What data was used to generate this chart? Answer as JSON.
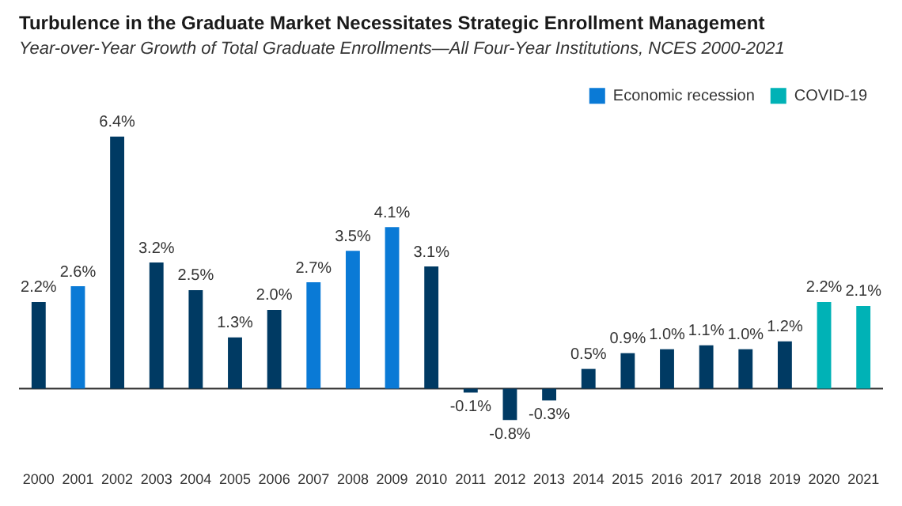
{
  "chart_data": {
    "type": "bar",
    "title": "Turbulence in the Graduate Market Necessitates Strategic Enrollment Management",
    "subtitle": "Year-over-Year Growth of Total Graduate Enrollments—All Four-Year Institutions, NCES 2000-2021",
    "categories": [
      "2000",
      "2001",
      "2002",
      "2003",
      "2004",
      "2005",
      "2006",
      "2007",
      "2008",
      "2009",
      "2010",
      "2011",
      "2012",
      "2013",
      "2014",
      "2015",
      "2016",
      "2017",
      "2018",
      "2019",
      "2020",
      "2021"
    ],
    "stacked": true,
    "legend": "top right",
    "series": [
      {
        "color": "#003a63",
        "values": [
          2.2,
          null,
          6.4,
          3.2,
          2.5,
          1.3,
          2.0,
          null,
          null,
          null,
          3.1,
          -0.1,
          -0.8,
          -0.3,
          0.5,
          0.9,
          1.0,
          1.1,
          1.0,
          1.2,
          null,
          null
        ],
        "value_labels": [
          "2.2%",
          null,
          "6.4%",
          "3.2%",
          "2.5%",
          "1.3%",
          "2.0%",
          null,
          null,
          null,
          "3.1%",
          "-0.1%",
          "-0.8%",
          "-0.3%",
          "0.5%",
          "0.9%",
          "1.0%",
          "1.1%",
          "1.0%",
          "1.2%",
          null,
          null
        ]
      },
      {
        "name": "Economic recession",
        "color": "#0a7ad6",
        "values": [
          null,
          2.6,
          null,
          null,
          null,
          null,
          null,
          2.7,
          3.5,
          4.1,
          null,
          null,
          null,
          null,
          null,
          null,
          null,
          null,
          null,
          null,
          null,
          null
        ],
        "value_labels": [
          null,
          "2.6%",
          null,
          null,
          null,
          null,
          null,
          "2.7%",
          "3.5%",
          "4.1%",
          null,
          null,
          null,
          null,
          null,
          null,
          null,
          null,
          null,
          null,
          null,
          null
        ]
      },
      {
        "name": "COVID-19",
        "color": "#00b2b6",
        "values": [
          null,
          null,
          null,
          null,
          null,
          null,
          null,
          null,
          null,
          null,
          null,
          null,
          null,
          null,
          null,
          null,
          null,
          null,
          null,
          null,
          2.2,
          2.1
        ],
        "value_labels": [
          null,
          null,
          null,
          null,
          null,
          null,
          null,
          null,
          null,
          null,
          null,
          null,
          null,
          null,
          null,
          null,
          null,
          null,
          null,
          null,
          "2.2%",
          "2.1%"
        ]
      }
    ]
  }
}
